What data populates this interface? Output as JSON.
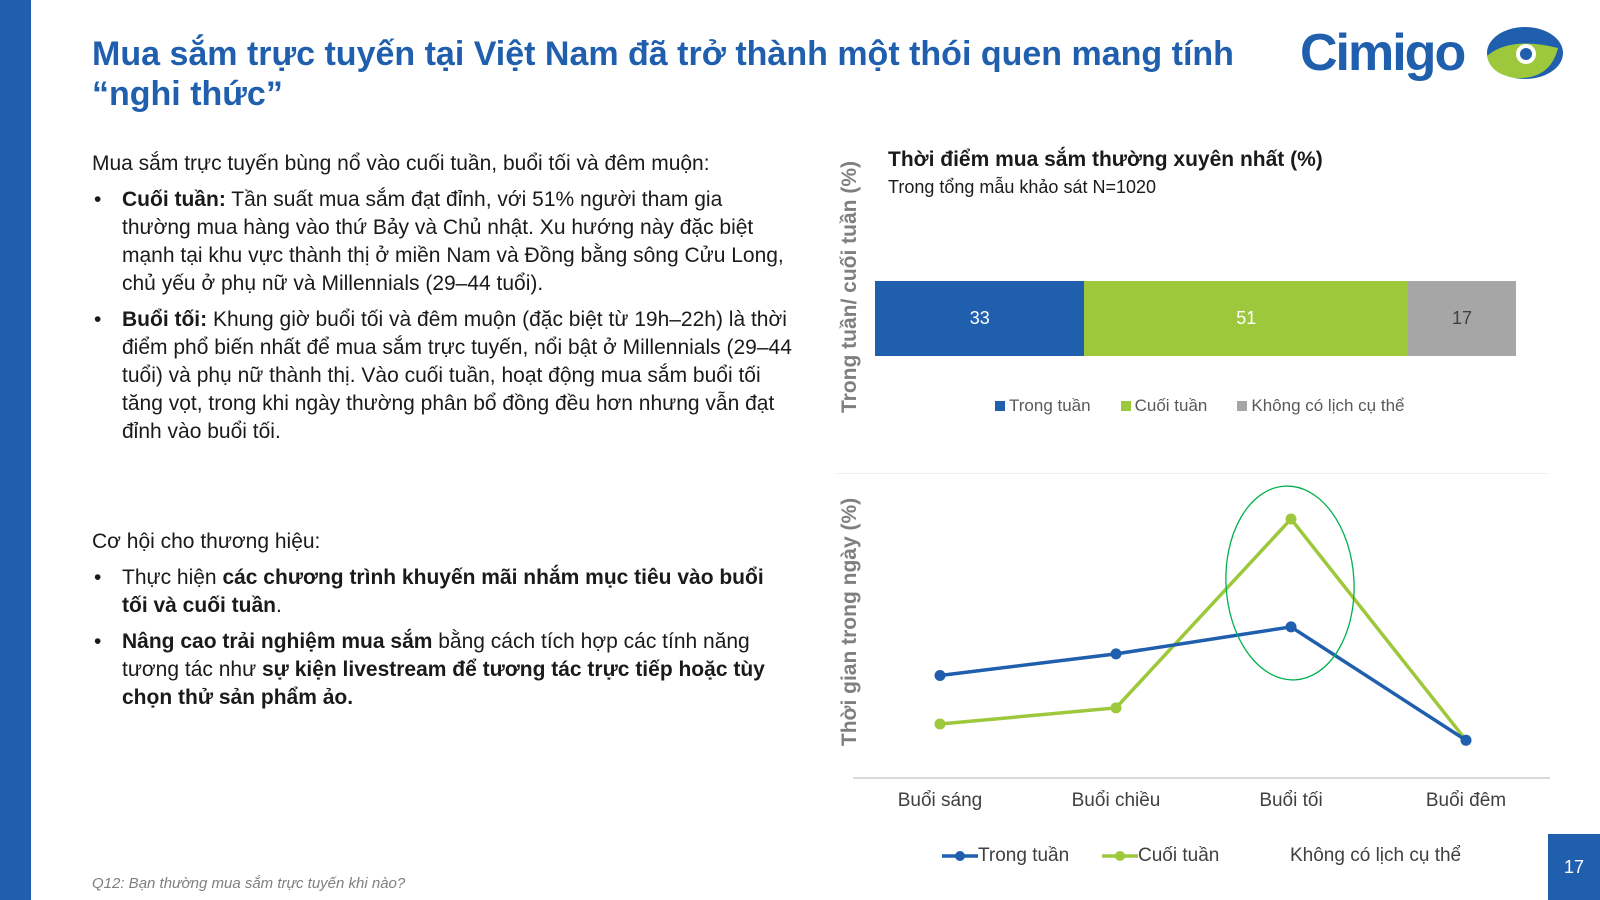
{
  "title": "Mua sắm trực tuyến tại Việt Nam đã trở thành một thói quen mang tính “nghi thức”",
  "logo_text": "Cimigo",
  "colors": {
    "brand_blue": "#1f5fad",
    "green": "#9dc83b",
    "gray": "#a6a6a6",
    "highlight": "#00b050"
  },
  "section1": {
    "intro": "Mua sắm trực tuyến bùng nổ vào cuối tuần, buổi tối và đêm muộn:",
    "bullets": [
      {
        "bold": "Cuối tuần:",
        "text": " Tần suất mua sắm đạt đỉnh, với 51% người tham gia thường mua hàng vào thứ Bảy và Chủ nhật. Xu hướng này đặc biệt mạnh tại khu vực thành thị ở miền Nam và Đồng bằng sông Cửu Long, chủ yếu ở phụ nữ và Millennials (29–44 tuổi)."
      },
      {
        "bold": "Buổi tối:",
        "text": " Khung giờ buổi tối và đêm muộn (đặc biệt từ 19h–22h) là thời điểm phổ biến nhất để mua sắm trực tuyến, nổi bật ở Millennials (29–44 tuổi) và phụ nữ thành thị. Vào cuối tuần, hoạt động mua sắm buổi tối tăng vọt, trong khi ngày thường phân bổ đồng đều hơn nhưng vẫn đạt đỉnh vào buổi tối."
      }
    ]
  },
  "section2": {
    "intro": "Cơ hội cho thương hiệu:",
    "b1": {
      "pre": "Thực hiện ",
      "bold": "các chương trình khuyến mãi nhắm mục tiêu vào buổi tối và cuối tuần",
      "post": "."
    },
    "b2": {
      "bold1": "Nâng cao trải nghiệm mua sắm",
      "mid": " bằng cách tích hợp các tính năng tương tác như ",
      "bold2": "sự kiện livestream để tương tác trực tiếp hoặc tùy chọn thử sản phẩm ảo."
    }
  },
  "footnote": "Q12: Bạn thường mua sắm trực tuyến khi nào?",
  "page_number": "17",
  "chart_data": [
    {
      "type": "bar",
      "stacked": true,
      "orientation": "horizontal",
      "title": "Thời điểm mua sắm thường xuyên nhất (%)",
      "subtitle": "Trong tổng mẫu khảo sát N=1020",
      "ylabel": "Trong tuần/ cuối tuần (%)",
      "series": [
        {
          "name": "Trong tuần",
          "values": [
            33
          ],
          "color": "#1f5fad"
        },
        {
          "name": "Cuối tuần",
          "values": [
            51
          ],
          "color": "#9dc83b"
        },
        {
          "name": "Không có lịch cụ thể",
          "values": [
            17
          ],
          "color": "#a6a6a6"
        }
      ],
      "legend": "bottom"
    },
    {
      "type": "line",
      "ylabel": "Thời gian trong ngày (%)",
      "categories": [
        "Buổi sáng",
        "Buổi chiều",
        "Buổi tối",
        "Buổi đêm"
      ],
      "ylim": [
        0,
        58
      ],
      "grid": false,
      "series": [
        {
          "name": "Trong tuần",
          "values": [
            19,
            23,
            28,
            7
          ],
          "color": "#1f5fad"
        },
        {
          "name": "Cuối tuần",
          "values": [
            10,
            13,
            48,
            7
          ],
          "color": "#9dc83b"
        }
      ],
      "legend_items": [
        "Trong tuần",
        "Cuối tuần",
        "Không có lịch cụ thể"
      ],
      "legend": "bottom",
      "highlight": "Buổi tối"
    }
  ]
}
